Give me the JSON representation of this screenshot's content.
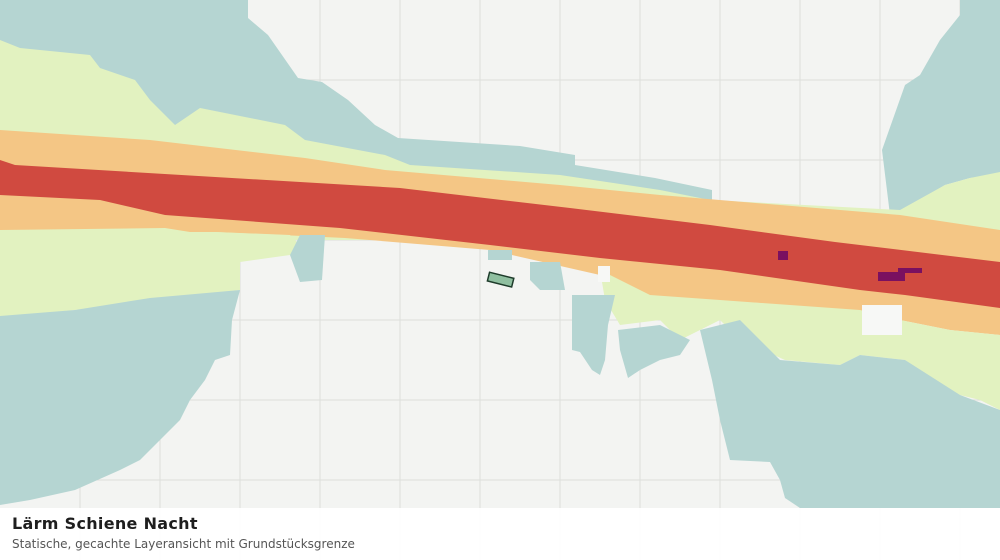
{
  "title": "Lärm Schiene Nacht",
  "subtitle": "Statische, gecachte Layeransicht mit Grundstücksgrenze"
}
